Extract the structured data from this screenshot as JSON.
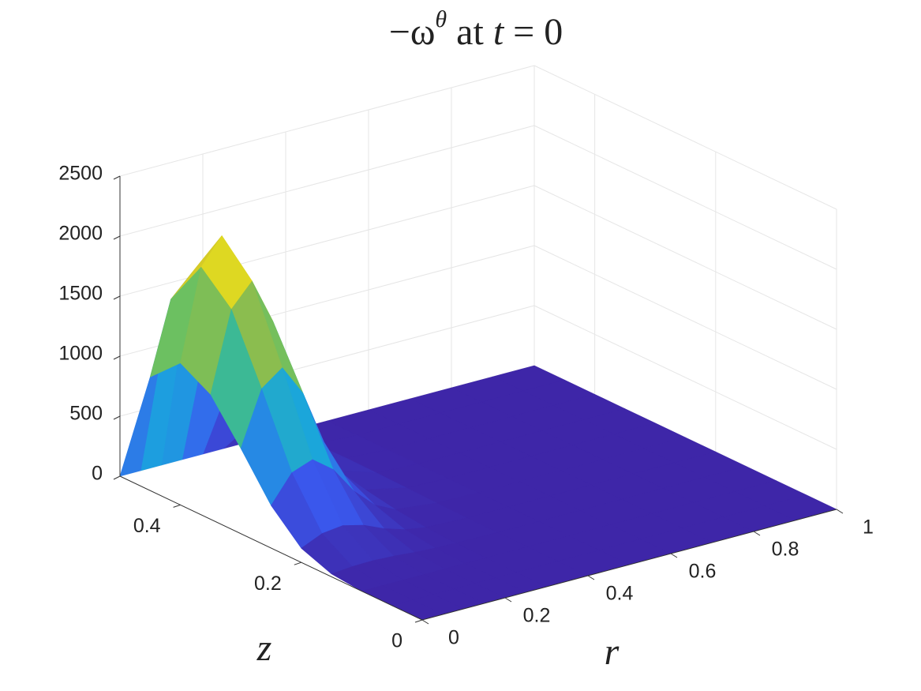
{
  "chart_data": {
    "type": "surface",
    "title_parts": [
      "−ω",
      "θ",
      " at ",
      "t",
      " = 0"
    ],
    "xlabel": "r",
    "ylabel": "z",
    "x": [
      0,
      0.05,
      0.1,
      0.15,
      0.2,
      0.25,
      0.3,
      0.4,
      0.5,
      0.6,
      0.7,
      0.8,
      0.9,
      1
    ],
    "y": [
      0,
      0.05,
      0.1,
      0.15,
      0.2,
      0.25,
      0.3,
      0.35,
      0.4,
      0.45,
      0.5
    ],
    "values": [
      [
        0,
        0,
        0,
        0,
        0,
        0,
        0,
        0,
        0,
        0,
        0,
        0,
        0,
        0
      ],
      [
        0,
        0,
        0,
        0,
        0,
        0,
        0,
        0,
        0,
        0,
        0,
        0,
        0,
        0
      ],
      [
        0,
        0,
        0,
        0,
        0,
        0,
        0,
        0,
        0,
        0,
        0,
        0,
        0,
        0
      ],
      [
        24,
        39,
        43,
        34,
        19,
        9,
        3,
        0,
        0,
        0,
        0,
        0,
        0,
        0
      ],
      [
        118,
        194,
        215,
        172,
        97,
        43,
        15,
        2,
        0,
        0,
        0,
        0,
        0,
        0
      ],
      [
        355,
        581,
        645,
        516,
        290,
        129,
        45,
        6,
        0,
        0,
        0,
        0,
        0,
        0
      ],
      [
        710,
        1161,
        1290,
        1032,
        581,
        258,
        90,
        13,
        0,
        0,
        0,
        0,
        0,
        0
      ],
      [
        1041,
        1703,
        1892,
        1514,
        851,
        378,
        132,
        19,
        0,
        0,
        0,
        0,
        0,
        0
      ],
      [
        1183,
        1935,
        2150,
        1720,
        968,
        430,
        151,
        22,
        0,
        0,
        0,
        0,
        0,
        0
      ],
      [
        946,
        1548,
        1720,
        1376,
        774,
        344,
        120,
        17,
        0,
        0,
        0,
        0,
        0,
        0
      ],
      [
        0,
        0,
        0,
        0,
        0,
        0,
        0,
        0,
        0,
        0,
        0,
        0,
        0,
        0
      ]
    ],
    "xlim": [
      0,
      1
    ],
    "ylim": [
      0,
      0.5
    ],
    "zlim": [
      0,
      2500
    ],
    "xticks": [
      0,
      0.2,
      0.4,
      0.6,
      0.8,
      1
    ],
    "yticks": [
      0,
      0.2,
      0.4
    ],
    "zticks": [
      0,
      500,
      1000,
      1500,
      2000,
      2500
    ],
    "grid": true
  }
}
